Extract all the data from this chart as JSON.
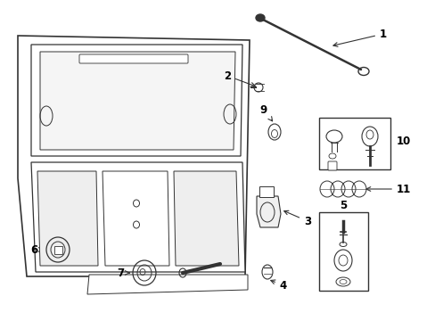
{
  "background_color": "#ffffff",
  "fig_width": 4.89,
  "fig_height": 3.6,
  "dpi": 100,
  "line_color": "#333333",
  "label_fontsize": 8.5,
  "label_color": "#000000"
}
